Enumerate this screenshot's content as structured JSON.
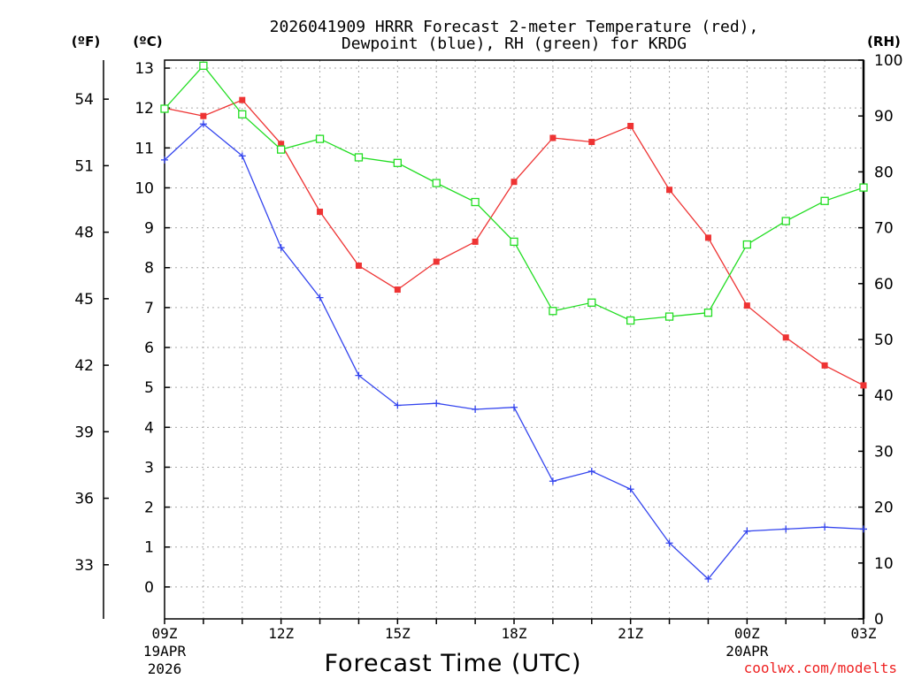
{
  "chart_data": {
    "type": "line",
    "title_line1": "2026041909 HRRR Forecast 2-meter Temperature (red),",
    "title_line2": "Dewpoint (blue), RH (green) for KRDG",
    "xlabel": "Forecast Time (UTC)",
    "credit": "coolwx.com/modelts",
    "left_outer_label": "(ºF)",
    "left_inner_label": "(ºC)",
    "right_label": "(RH)",
    "x_ticks": [
      {
        "h": 0,
        "label": "09Z",
        "sub1": "19APR",
        "sub2": "2026"
      },
      {
        "h": 3,
        "label": "12Z",
        "sub1": "",
        "sub2": ""
      },
      {
        "h": 6,
        "label": "15Z",
        "sub1": "",
        "sub2": ""
      },
      {
        "h": 9,
        "label": "18Z",
        "sub1": "",
        "sub2": ""
      },
      {
        "h": 12,
        "label": "21Z",
        "sub1": "",
        "sub2": ""
      },
      {
        "h": 15,
        "label": "00Z",
        "sub1": "20APR",
        "sub2": ""
      },
      {
        "h": 18,
        "label": "03Z",
        "sub1": "",
        "sub2": ""
      }
    ],
    "xlim": [
      0,
      18
    ],
    "ylim_c": [
      -0.8,
      13.2
    ],
    "ylim_rh": [
      0,
      100
    ],
    "celsius_ticks": [
      "0",
      "1",
      "2",
      "3",
      "4",
      "5",
      "6",
      "7",
      "8",
      "9",
      "10",
      "11",
      "12",
      "13"
    ],
    "fahrenheit_ticks": [
      "33",
      "36",
      "39",
      "42",
      "45",
      "48",
      "51",
      "54"
    ],
    "rh_ticks": [
      "0",
      "10",
      "20",
      "30",
      "40",
      "50",
      "60",
      "70",
      "80",
      "90",
      "100"
    ],
    "series": [
      {
        "name": "Temperature",
        "unit": "C",
        "color": "#ee3333",
        "marker": "filled-square",
        "x": [
          0,
          1,
          2,
          3,
          4,
          5,
          6,
          7,
          8,
          9,
          10,
          11,
          12,
          13,
          14,
          15,
          16,
          17,
          18
        ],
        "values": [
          12.0,
          11.8,
          12.2,
          11.1,
          9.4,
          8.05,
          7.45,
          8.15,
          8.65,
          10.15,
          11.25,
          11.15,
          11.55,
          9.95,
          8.75,
          7.05,
          6.25,
          5.55,
          5.05
        ]
      },
      {
        "name": "Dewpoint",
        "unit": "C",
        "color": "#3344ee",
        "marker": "plus",
        "x": [
          0,
          1,
          2,
          3,
          4,
          5,
          6,
          7,
          8,
          9,
          10,
          11,
          12,
          13,
          14,
          15,
          16,
          17,
          18
        ],
        "values": [
          10.7,
          11.6,
          10.8,
          8.5,
          7.25,
          5.3,
          4.55,
          4.6,
          4.45,
          4.5,
          2.65,
          2.9,
          2.45,
          1.1,
          0.2,
          1.4,
          1.45,
          1.5,
          1.45
        ]
      },
      {
        "name": "RH",
        "unit": "%",
        "color": "#22dd22",
        "marker": "open-square",
        "x": [
          0,
          1,
          2,
          3,
          4,
          5,
          6,
          7,
          8,
          9,
          10,
          11,
          12,
          13,
          14,
          15,
          16,
          17,
          18
        ],
        "values": [
          91.3,
          99.0,
          90.3,
          84.0,
          85.9,
          82.6,
          81.6,
          78.0,
          74.6,
          67.5,
          55.1,
          56.6,
          53.4,
          54.1,
          54.8,
          67.0,
          71.2,
          74.8,
          77.2
        ]
      }
    ]
  }
}
